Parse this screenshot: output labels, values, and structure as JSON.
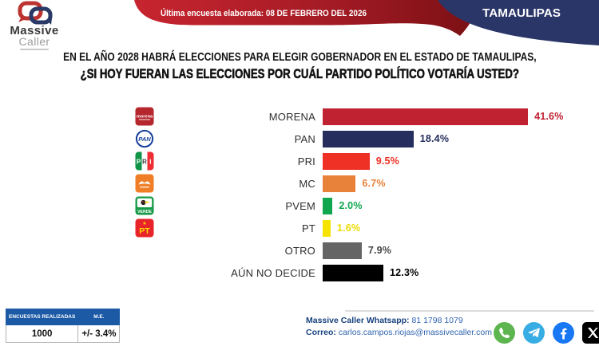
{
  "banner": {
    "last_survey": "Última encuesta elaborada: 08 DE FEBRERO DEL 2026",
    "state": "TAMAULIPAS"
  },
  "brand": {
    "name_line1": "Massive",
    "name_line2": "Caller"
  },
  "question": {
    "line1": "EN EL AÑO 2028 HABRÁ ELECCIONES PARA ELEGIR GOBERNADOR EN EL ESTADO DE TAMAULIPAS,",
    "line2": "¿SI HOY FUERAN LAS ELECCIONES POR CUÁL PARTIDO POLÍTICO VOTARÍA USTED?"
  },
  "chart_data": {
    "type": "bar",
    "orientation": "horizontal",
    "categories": [
      "MORENA",
      "PAN",
      "PRI",
      "MC",
      "PVEM",
      "PT",
      "OTRO",
      "AÚN NO DECIDE"
    ],
    "values": [
      41.6,
      18.4,
      9.5,
      6.7,
      2.0,
      1.6,
      7.9,
      12.3
    ],
    "value_labels": [
      "41.6%",
      "18.4%",
      "9.5%",
      "6.7%",
      "2.0%",
      "1.6%",
      "7.9%",
      "12.3%"
    ],
    "bar_colors": [
      "#c02231",
      "#252e5d",
      "#ee3124",
      "#e8823b",
      "#0fa64e",
      "#f6e400",
      "#656565",
      "#000000"
    ],
    "value_label_colors": [
      "#c02231",
      "#252e5d",
      "#ee3124",
      "#e8823b",
      "#0fa64e",
      "#eddc00",
      "#474747",
      "#000000"
    ],
    "party_logos": [
      "morena",
      "pan",
      "pri",
      "mc",
      "pvem",
      "pt",
      null,
      null
    ],
    "logo_texts": {
      "morena": "morena",
      "pan": "PAN",
      "pri": "PRI",
      "pvem": "VERDE",
      "pt": "PT"
    },
    "xlim": [
      0,
      45
    ],
    "grid": false,
    "legend": false,
    "title": "",
    "xlabel": "",
    "ylabel": ""
  },
  "stats": {
    "col1_header": "ENCUESTAS REALIZADAS",
    "col2_header": "M.E.",
    "col1_value": "1000",
    "col2_value": "+/- 3.4%"
  },
  "footer": {
    "whatsapp_label": "Massive Caller Whatsapp:",
    "whatsapp_number": "81 1798 1079",
    "email_label": "Correo:",
    "email_value": "carlos.campos.riojas@massivecaller.com",
    "social_icons": [
      "whatsapp-icon",
      "telegram-icon",
      "facebook-icon",
      "x-icon"
    ]
  },
  "colors": {
    "ribbon_red": "#c7252f",
    "ribbon_mid": "#a51b25",
    "ribbon_dark_red": "#7a1014",
    "banner_navy": "#2a3568",
    "table_header_blue": "#1c5aa6",
    "contact_label_blue": "#17427e",
    "contact_value_blue": "#2f64b0",
    "question_color": "#131313",
    "separator_gray": "#dcdcdc"
  }
}
